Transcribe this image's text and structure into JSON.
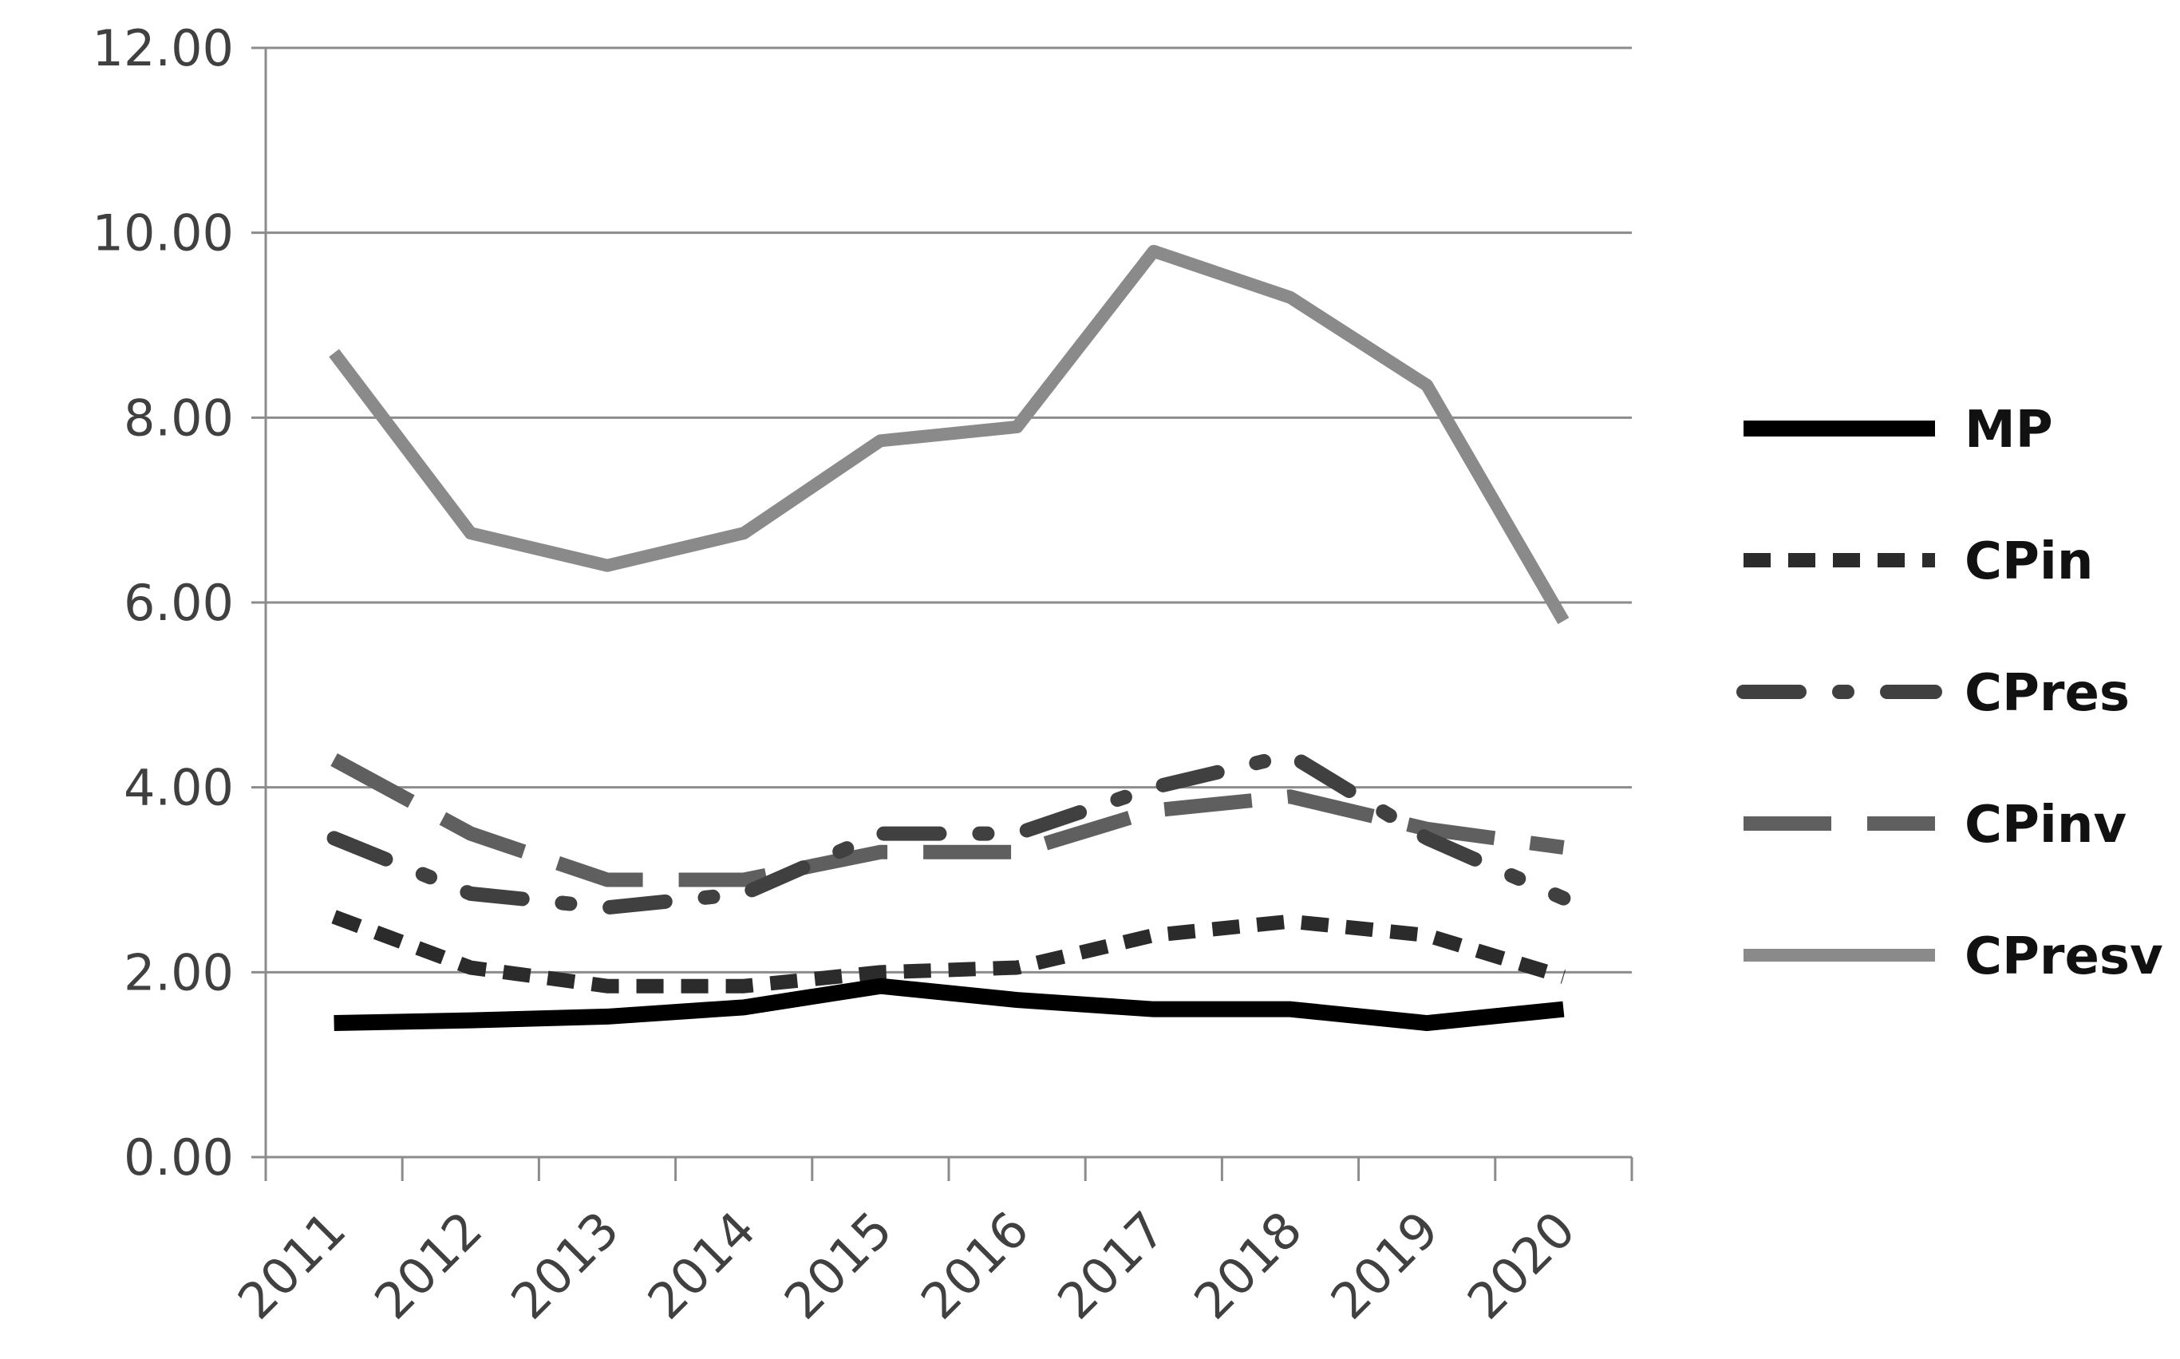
{
  "chart_data": {
    "type": "line",
    "title": "",
    "xlabel": "",
    "ylabel": "",
    "categories": [
      "2011",
      "2012",
      "2013",
      "2014",
      "2015",
      "2016",
      "2017",
      "2018",
      "2019",
      "2020"
    ],
    "ylim": [
      0,
      12
    ],
    "y_ticks": [
      "0.00",
      "2.00",
      "4.00",
      "6.00",
      "8.00",
      "10.00",
      "12.00"
    ],
    "grid": "horizontal",
    "legend_position": "right",
    "series": [
      {
        "name": "MP",
        "color": "#000000",
        "style": "solid",
        "values": [
          1.45,
          1.48,
          1.52,
          1.62,
          1.85,
          1.7,
          1.6,
          1.6,
          1.45,
          1.6
        ]
      },
      {
        "name": "CPin",
        "color": "#2b2b2b",
        "style": "short-dash",
        "values": [
          2.6,
          2.05,
          1.85,
          1.85,
          2.0,
          2.05,
          2.4,
          2.55,
          2.4,
          1.95
        ]
      },
      {
        "name": "CPres",
        "color": "#404040",
        "style": "dash-dot",
        "values": [
          3.45,
          2.85,
          2.7,
          2.85,
          3.5,
          3.5,
          4.0,
          4.35,
          3.45,
          2.8
        ]
      },
      {
        "name": "CPinv",
        "color": "#5f5f5f",
        "style": "long-dash",
        "values": [
          4.3,
          3.5,
          3.0,
          3.0,
          3.3,
          3.3,
          3.75,
          3.9,
          3.55,
          3.35
        ]
      },
      {
        "name": "CPresv",
        "color": "#8a8a8a",
        "style": "solid",
        "values": [
          8.7,
          6.75,
          6.4,
          6.75,
          7.75,
          7.9,
          9.8,
          9.3,
          8.35,
          5.8
        ]
      }
    ]
  }
}
